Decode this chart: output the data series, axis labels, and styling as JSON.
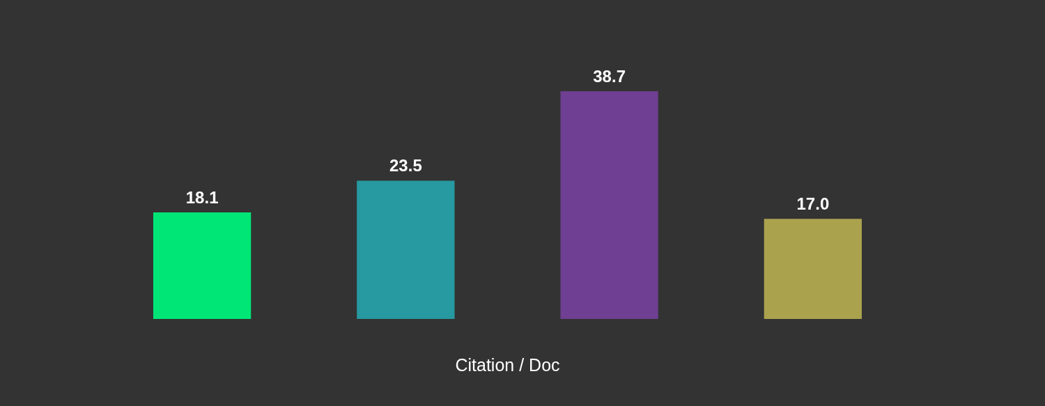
{
  "chart_data": {
    "type": "bar",
    "xlabel": "Citation / Doc",
    "categories": [
      null,
      null,
      null,
      null
    ],
    "values": [
      18.1,
      23.5,
      38.7,
      17.0
    ],
    "value_labels": [
      "18.1",
      "23.5",
      "38.7",
      "17.0"
    ],
    "colors": [
      "#00e676",
      "#2799a0",
      "#6e3f92",
      "#aba24e"
    ],
    "tick_labels": false
  }
}
